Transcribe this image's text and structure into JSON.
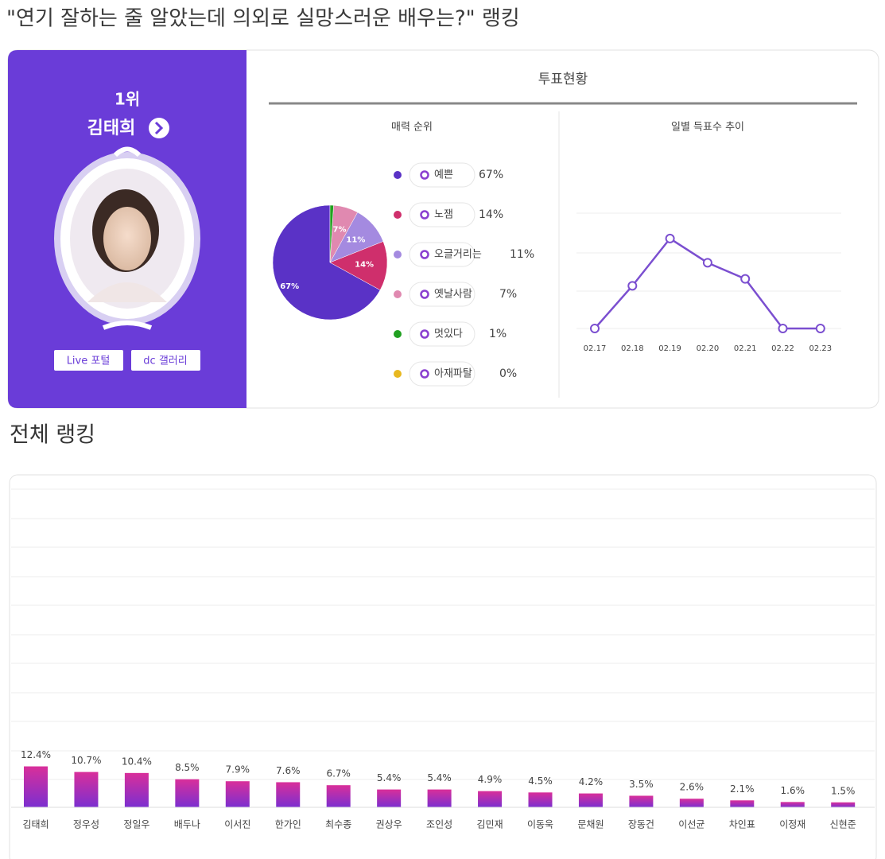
{
  "header": {
    "title": "\"연기 잘하는 줄 알았는데 의외로 실망스러운 배우는?\" 랭킹"
  },
  "profile": {
    "rank": "1위",
    "name": "김태희",
    "buttons": [
      "Live 포털",
      "dc 갤러리"
    ]
  },
  "section_title": "투표현황",
  "ranking_title": "전체 랭킹",
  "chart_data": [
    {
      "type": "pie",
      "title": "매력 순위",
      "categories": [
        "예쁜",
        "노잼",
        "오글거리는",
        "옛날사람",
        "멋있다",
        "아재파탈"
      ],
      "values": [
        67,
        14,
        11,
        7,
        1,
        0
      ],
      "value_labels": [
        "67%",
        "14%",
        "11%",
        "7%",
        "1%",
        "0%"
      ],
      "colors": [
        "#5a32c6",
        "#cf2f6c",
        "#a48ae0",
        "#e089b0",
        "#21a021",
        "#e8b820"
      ]
    },
    {
      "type": "line",
      "title": "일별 득표수 추이",
      "categories": [
        "02.17",
        "02.18",
        "02.19",
        "02.20",
        "02.21",
        "02.22",
        "02.23"
      ],
      "values": [
        0,
        37,
        78,
        57,
        43,
        0,
        0
      ],
      "ylim": [
        0,
        100
      ],
      "color": "#7b4fd0"
    },
    {
      "type": "bar",
      "categories": [
        "김태희",
        "정우성",
        "정일우",
        "배두나",
        "이서진",
        "한가인",
        "최수종",
        "권상우",
        "조인성",
        "김민재",
        "이동욱",
        "문채원",
        "장동건",
        "이선균",
        "차인표",
        "이정재",
        "신현준"
      ],
      "values": [
        12.4,
        10.7,
        10.4,
        8.5,
        7.9,
        7.6,
        6.7,
        5.4,
        5.4,
        4.9,
        4.5,
        4.2,
        3.5,
        2.6,
        2.1,
        1.6,
        1.5
      ],
      "value_labels": [
        "12.4%",
        "10.7%",
        "10.4%",
        "8.5%",
        "7.9%",
        "7.6%",
        "6.7%",
        "5.4%",
        "5.4%",
        "4.9%",
        "4.5%",
        "4.2%",
        "3.5%",
        "2.6%",
        "2.1%",
        "1.6%",
        "1.5%"
      ],
      "ylim": [
        0,
        100
      ],
      "color": "#9b2fc4"
    }
  ]
}
